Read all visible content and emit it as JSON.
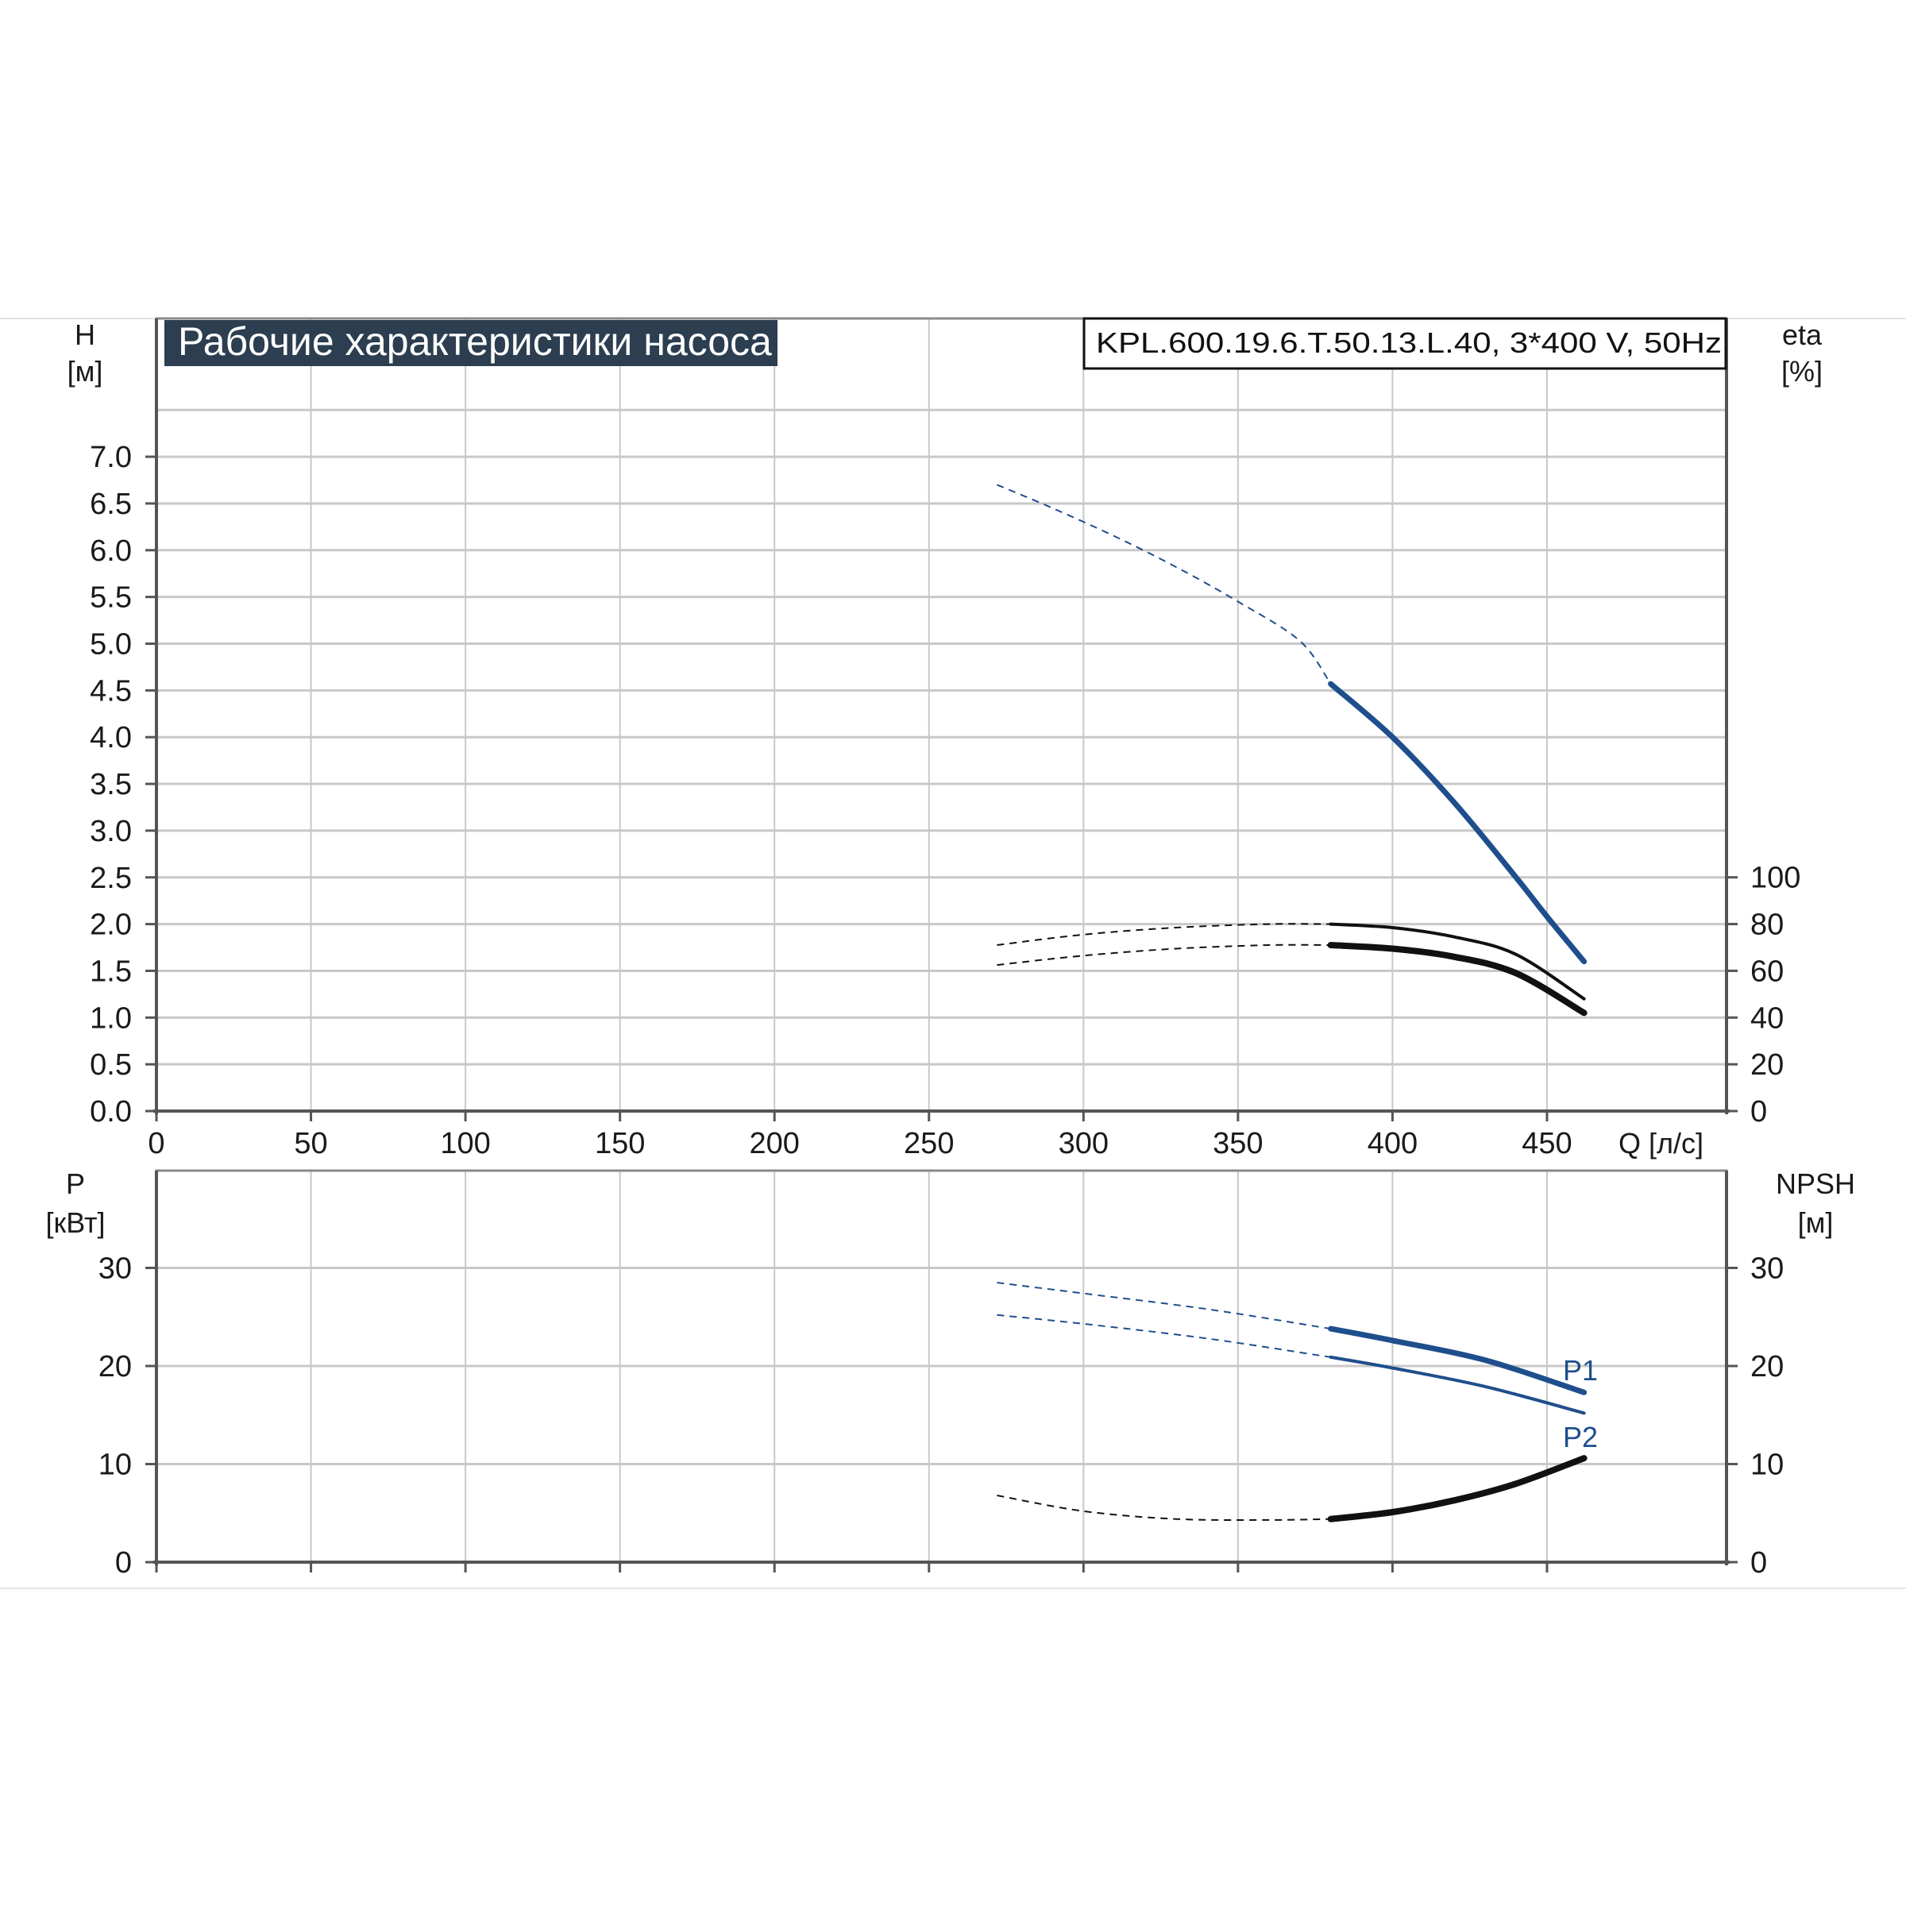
{
  "title": "Рабочие характеристики насоса",
  "model": "KPL.600.19.6.T.50.13.L.40, 3*400 V, 50Hz",
  "colors": {
    "blue": "#1f4e8c",
    "black": "#111111",
    "grid": "#c8c8c8",
    "title_bg": "#2c3e50"
  },
  "top_chart": {
    "left_axis_unit": [
      "H",
      "[м]"
    ],
    "right_axis_unit": [
      "eta",
      "[%]"
    ],
    "x_axis_unit": "Q [л/с]",
    "xlim": [
      0,
      510
    ],
    "ylim": [
      0,
      8
    ],
    "x_ticks": [
      "0",
      "50",
      "100",
      "150",
      "200",
      "250",
      "300",
      "350",
      "400",
      "450"
    ],
    "x_tick_values": [
      0,
      50,
      100,
      150,
      200,
      250,
      300,
      350,
      400,
      450
    ],
    "y_ticks": [
      "0.0",
      "0.5",
      "1.0",
      "1.5",
      "2.0",
      "2.5",
      "3.0",
      "3.5",
      "4.0",
      "4.5",
      "5.0",
      "5.5",
      "6.0",
      "6.5",
      "7.0"
    ],
    "y_tick_values": [
      0,
      0.5,
      1,
      1.5,
      2,
      2.5,
      3,
      3.5,
      4,
      4.5,
      5,
      5.5,
      6,
      6.5,
      7
    ],
    "right_ticks": [
      "0",
      "20",
      "40",
      "60",
      "80",
      "100"
    ],
    "right_tick_values": [
      0,
      20,
      40,
      60,
      80,
      100
    ]
  },
  "bottom_chart": {
    "left_axis_unit": [
      "P",
      "[кВт]"
    ],
    "right_axis_unit": [
      "NPSH",
      "[м]"
    ],
    "xlim": [
      0,
      510
    ],
    "ylim": [
      0,
      40
    ],
    "y_ticks": [
      "0",
      "10",
      "20",
      "30"
    ],
    "y_tick_values": [
      0,
      10,
      20,
      30
    ],
    "right_ticks": [
      "0",
      "10",
      "20",
      "30"
    ],
    "right_tick_values": [
      0,
      10,
      20,
      30
    ],
    "curve_labels": [
      "P1",
      "P2"
    ]
  },
  "chart_data": [
    {
      "type": "line",
      "title": "Рабочие характеристики насоса",
      "xlabel": "Q [л/с]",
      "ylabel": "H [м]",
      "y2label": "eta [%]",
      "xlim": [
        0,
        510
      ],
      "ylim": [
        0,
        8
      ],
      "y2lim": [
        0,
        100
      ],
      "grid": true,
      "series": [
        {
          "axis": "left",
          "color": "#1f4e8c",
          "style": "dashed",
          "width": 2,
          "x": [
            272,
            290,
            310,
            330,
            350,
            370,
            380
          ],
          "values": [
            6.7,
            6.45,
            6.15,
            5.82,
            5.45,
            5.03,
            4.57
          ]
        },
        {
          "axis": "left",
          "color": "#1f4e8c",
          "style": "solid",
          "width": 7,
          "x": [
            380,
            400,
            420,
            440,
            450,
            462
          ],
          "values": [
            4.57,
            4.0,
            3.3,
            2.5,
            2.08,
            1.6
          ]
        },
        {
          "axis": "right",
          "color": "#111111",
          "style": "dashed",
          "width": 2,
          "x": [
            272,
            300,
            330,
            360,
            380
          ],
          "values": [
            71,
            75.5,
            78.5,
            80,
            80
          ]
        },
        {
          "axis": "right",
          "color": "#111111",
          "style": "solid",
          "width": 4,
          "x": [
            380,
            400,
            420,
            440,
            462
          ],
          "values": [
            80,
            78.5,
            74.5,
            67,
            48
          ]
        },
        {
          "axis": "right",
          "color": "#111111",
          "style": "dashed",
          "width": 2,
          "x": [
            272,
            300,
            330,
            360,
            380
          ],
          "values": [
            62.5,
            66.5,
            69.5,
            71,
            71
          ]
        },
        {
          "axis": "right",
          "color": "#111111",
          "style": "solid",
          "width": 8,
          "x": [
            380,
            400,
            420,
            440,
            462
          ],
          "values": [
            71,
            69.5,
            66,
            59,
            42
          ]
        }
      ]
    },
    {
      "type": "line",
      "xlabel": "Q [л/с]",
      "ylabel": "P [кВт]",
      "y2label": "NPSH [м]",
      "xlim": [
        0,
        510
      ],
      "ylim": [
        0,
        40
      ],
      "grid": true,
      "series": [
        {
          "name": "P1",
          "axis": "left",
          "color": "#1f4e8c",
          "style": "dashed",
          "width": 2,
          "x": [
            272,
            300,
            340,
            380
          ],
          "values": [
            28.5,
            27.4,
            25.8,
            23.8
          ]
        },
        {
          "name": "P1",
          "axis": "left",
          "color": "#1f4e8c",
          "style": "solid",
          "width": 7,
          "x": [
            380,
            400,
            430,
            462
          ],
          "values": [
            23.8,
            22.6,
            20.6,
            17.3
          ]
        },
        {
          "name": "P2",
          "axis": "left",
          "color": "#1f4e8c",
          "style": "dashed",
          "width": 2,
          "x": [
            272,
            300,
            340,
            380
          ],
          "values": [
            25.2,
            24.3,
            22.8,
            20.9
          ]
        },
        {
          "name": "P2",
          "axis": "left",
          "color": "#1f4e8c",
          "style": "solid",
          "width": 4,
          "x": [
            380,
            400,
            430,
            462
          ],
          "values": [
            20.9,
            19.8,
            17.9,
            15.2
          ]
        },
        {
          "axis": "right",
          "color": "#111111",
          "style": "dashed",
          "width": 2,
          "x": [
            272,
            300,
            330,
            360,
            380
          ],
          "values": [
            6.8,
            5.2,
            4.4,
            4.3,
            4.4
          ]
        },
        {
          "axis": "right",
          "color": "#111111",
          "style": "solid",
          "width": 8,
          "x": [
            380,
            400,
            420,
            440,
            462
          ],
          "values": [
            4.4,
            5.1,
            6.3,
            8.0,
            10.6
          ]
        }
      ]
    }
  ]
}
